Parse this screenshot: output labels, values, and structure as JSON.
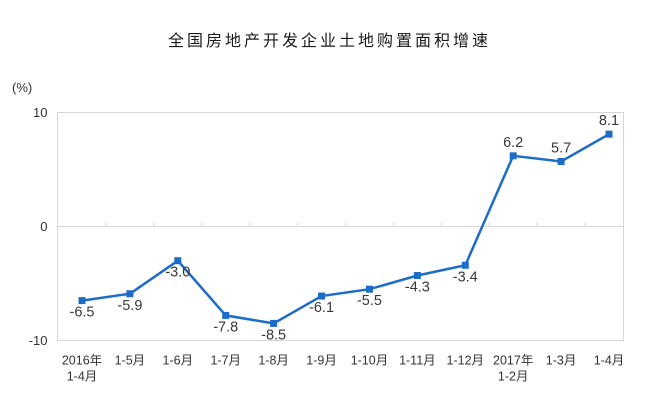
{
  "chart_data": {
    "type": "line",
    "title": "全国房地产开发企业土地购置面积增速",
    "unit_label": "(%)",
    "categories": [
      "2016年\n1-4月",
      "1-5月",
      "1-6月",
      "1-7月",
      "1-8月",
      "1-9月",
      "1-10月",
      "1-11月",
      "1-12月",
      "2017年\n1-2月",
      "1-3月",
      "1-4月"
    ],
    "values": [
      -6.5,
      -5.9,
      -3.0,
      -7.8,
      -8.5,
      -6.1,
      -5.5,
      -4.3,
      -3.4,
      6.2,
      5.7,
      8.1
    ],
    "value_labels": [
      "-6.5",
      "-5.9",
      "-3.0",
      "-7.8",
      "-8.5",
      "-6.1",
      "-5.5",
      "-4.3",
      "-3.4",
      "6.2",
      "5.7",
      "8.1"
    ],
    "ylim": [
      -10,
      10
    ],
    "yticks": [
      10,
      0,
      -10
    ],
    "xlabel": "",
    "ylabel": "(%)",
    "legend": "none",
    "grid": "zero-baseline-only",
    "colors": {
      "line": "#1d6cc8",
      "marker": "#1d6cc8",
      "axis": "#d6d6d6",
      "tick_text": "#333333",
      "value_label_text": "#383838",
      "title_text": "#1a1a1a",
      "background": "#ffffff"
    }
  }
}
